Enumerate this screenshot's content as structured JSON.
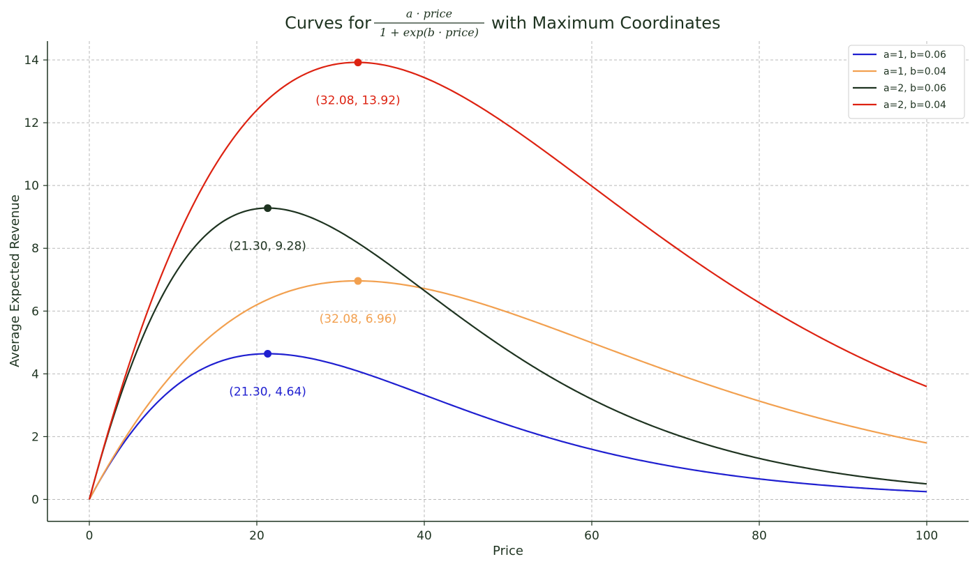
{
  "chart_data": {
    "type": "line",
    "title": {
      "prefix": "Curves for",
      "numerator": "a · price",
      "denominator": "1 + exp(b · price)",
      "suffix": "with Maximum Coordinates"
    },
    "xlabel": "Price",
    "ylabel": "Average Expected Revenue",
    "xlim": [
      -5,
      105
    ],
    "ylim": [
      -0.7,
      14.6
    ],
    "xticks": [
      0,
      20,
      40,
      60,
      80,
      100
    ],
    "yticks": [
      0,
      2,
      4,
      6,
      8,
      10,
      12,
      14
    ],
    "grid": true,
    "legend_position": "top-right",
    "x_range": [
      0,
      100
    ],
    "series": [
      {
        "name": "a=1, b=0.06",
        "a": 1,
        "b": 0.06,
        "color": "#1f1fd0",
        "max": {
          "x": 21.3,
          "y": 4.64,
          "label": "(21.30, 4.64)"
        }
      },
      {
        "name": "a=1, b=0.04",
        "a": 1,
        "b": 0.04,
        "color": "#f2a04f",
        "max": {
          "x": 32.08,
          "y": 6.96,
          "label": "(32.08, 6.96)"
        }
      },
      {
        "name": "a=2, b=0.06",
        "a": 2,
        "b": 0.06,
        "color": "#1e3320",
        "max": {
          "x": 21.3,
          "y": 9.28,
          "label": "(21.30, 9.28)"
        }
      },
      {
        "name": "a=2, b=0.04",
        "a": 2,
        "b": 0.04,
        "color": "#dd2211",
        "max": {
          "x": 32.08,
          "y": 13.92,
          "label": "(32.08, 13.92)"
        }
      }
    ]
  }
}
